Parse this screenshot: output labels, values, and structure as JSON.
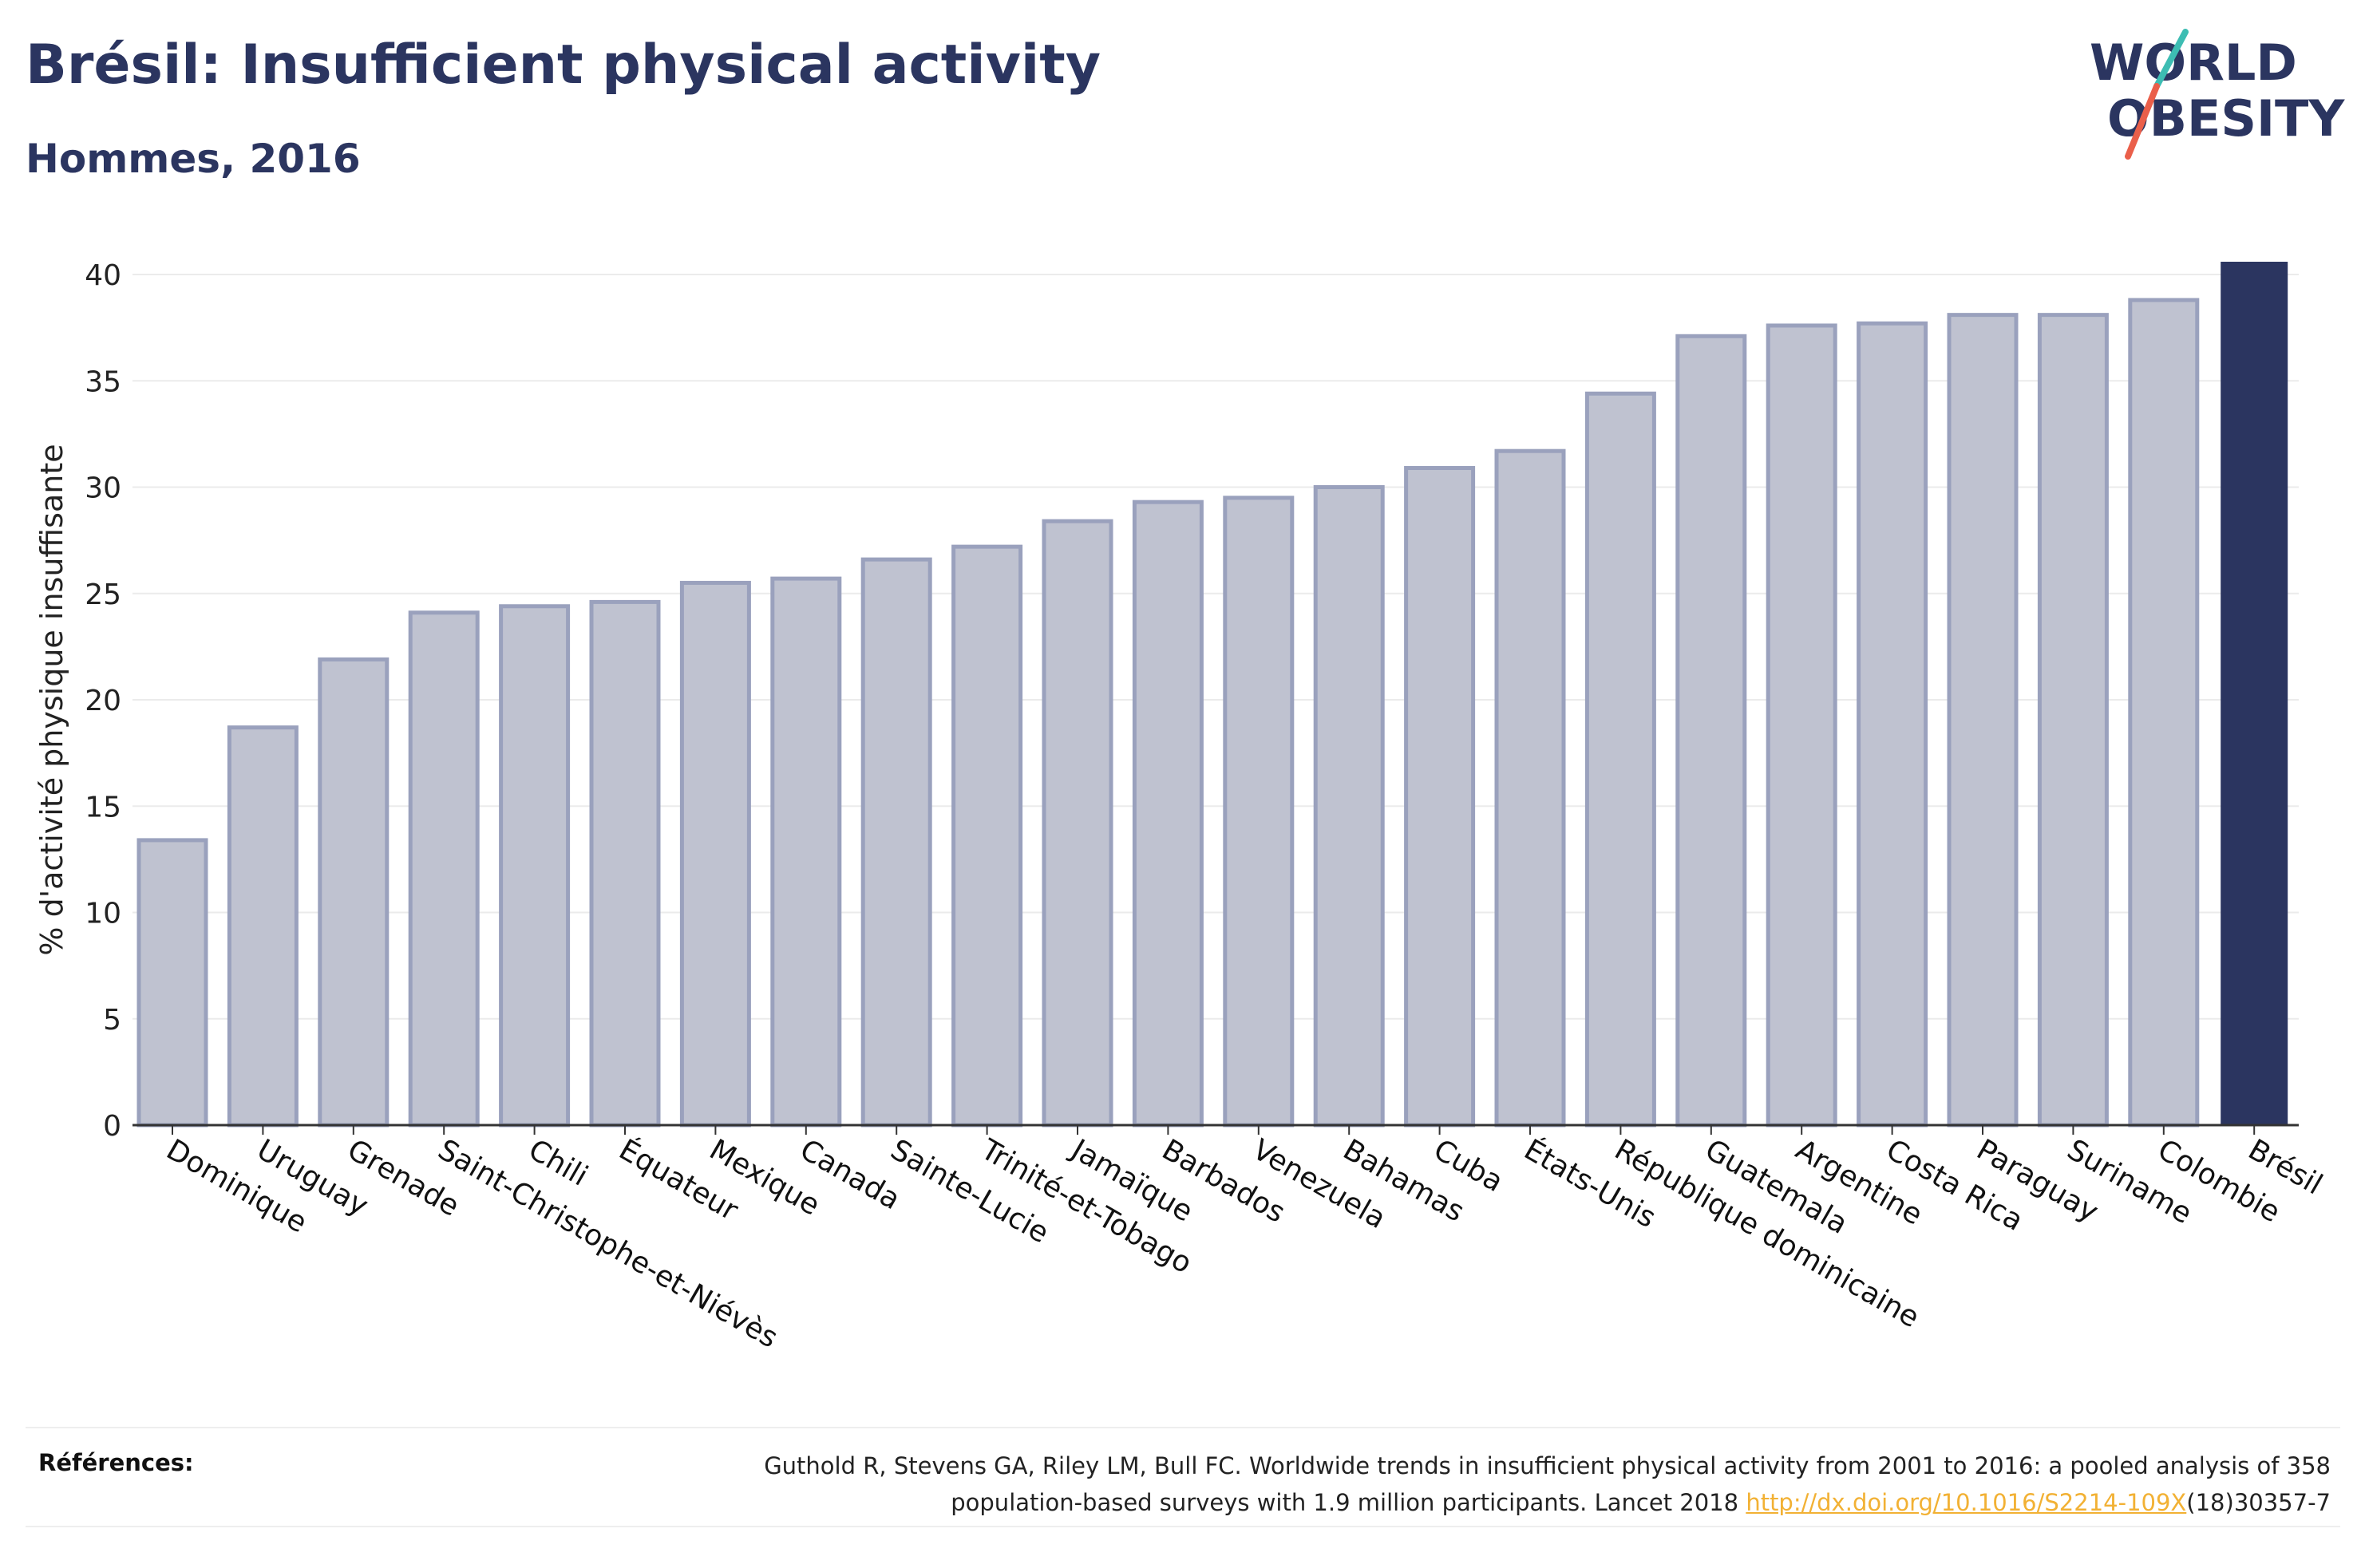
{
  "header": {
    "title": "Brésil: Insufficient physical activity",
    "subtitle": "Hommes, 2016"
  },
  "logo": {
    "line1": "WORLD",
    "line2": "OBESITY",
    "colors": {
      "text": "#2b3560",
      "slash_top": "#3dbdb3",
      "slash_bottom": "#ea5f4a"
    }
  },
  "footer": {
    "references_label": "Références:",
    "reference_text_line1": "Guthold R, Stevens GA, Riley LM, Bull FC. Worldwide trends in insufficient physical activity from 2001 to 2016: a pooled analysis of 358",
    "reference_text_line2_before": "population-based surveys with 1.9 million participants. Lancet 2018 ",
    "reference_link": "http://dx.doi.org/10.1016/S2214-109X",
    "reference_text_line2_after": "(18)30357-7"
  },
  "colors": {
    "bar_fill": "#bfc2d0",
    "bar_stroke": "#9aa1bd",
    "highlight": "#2b3560",
    "grid": "#ebebeb",
    "axis": "#333333"
  },
  "chart_data": {
    "type": "bar",
    "ylabel": "% d'activité physique insuffisante",
    "ylim": [
      0,
      41
    ],
    "yticks": [
      0,
      5,
      10,
      15,
      20,
      25,
      30,
      35,
      40
    ],
    "grid": true,
    "highlight": "Brésil",
    "categories": [
      "Dominique",
      "Uruguay",
      "Grenade",
      "Saint-Christophe-et-Niévès",
      "Chili",
      "Équateur",
      "Mexique",
      "Canada",
      "Sainte-Lucie",
      "Trinité-et-Tobago",
      "Jamaïque",
      "Barbados",
      "Venezuela",
      "Bahamas",
      "Cuba",
      "États-Unis",
      "République dominicaine",
      "Guatemala",
      "Argentine",
      "Costa Rica",
      "Paraguay",
      "Suriname",
      "Colombie",
      "Brésil"
    ],
    "values": [
      13.4,
      18.7,
      21.9,
      24.1,
      24.4,
      24.6,
      25.5,
      25.7,
      26.6,
      27.2,
      28.4,
      29.3,
      29.5,
      30.0,
      30.9,
      31.7,
      34.4,
      37.1,
      37.6,
      37.7,
      38.1,
      38.1,
      38.8,
      40.6
    ]
  }
}
